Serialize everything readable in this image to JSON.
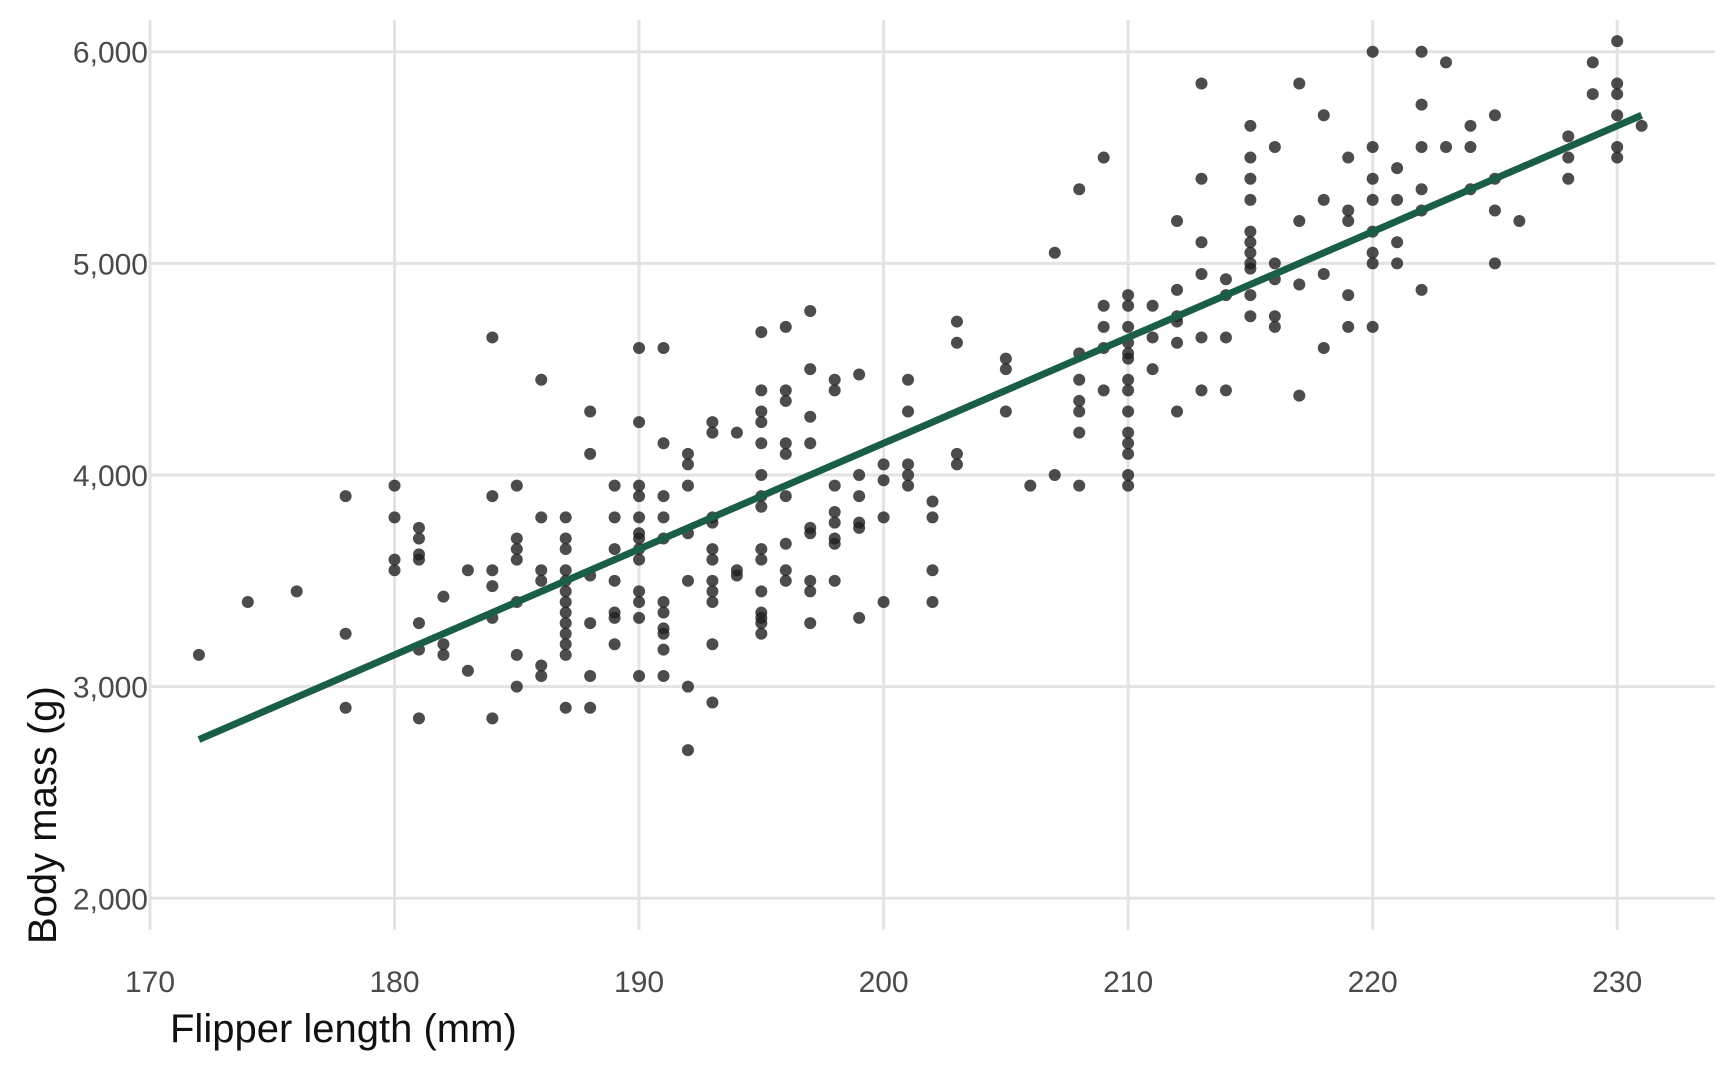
{
  "chart_data": {
    "type": "scatter",
    "title": "",
    "xlabel": "Flipper length (mm)",
    "ylabel": "Body mass (g)",
    "xlim": [
      170,
      234
    ],
    "ylim": [
      1850,
      6150
    ],
    "x_ticks": [
      170,
      180,
      190,
      200,
      210,
      220,
      230
    ],
    "x_tick_labels": [
      "170",
      "180",
      "190",
      "200",
      "210",
      "220",
      "230"
    ],
    "y_ticks": [
      2000,
      3000,
      4000,
      5000,
      6000
    ],
    "y_tick_labels": [
      "2,000",
      "3,000",
      "4,000",
      "5,000",
      "6,000"
    ],
    "grid": true,
    "legend": "none",
    "colors": {
      "points": "#1f1f1f",
      "trend_line": "#1a5e45",
      "grid": "#e3e3e3"
    },
    "points": [
      [
        172,
        3150
      ],
      [
        174,
        3400
      ],
      [
        176,
        3450
      ],
      [
        178,
        3900
      ],
      [
        178,
        3250
      ],
      [
        178,
        2900
      ],
      [
        180,
        3950
      ],
      [
        180,
        3800
      ],
      [
        180,
        3600
      ],
      [
        180,
        3550
      ],
      [
        181,
        3750
      ],
      [
        181,
        3700
      ],
      [
        181,
        3625
      ],
      [
        181,
        3600
      ],
      [
        181,
        3300
      ],
      [
        181,
        3175
      ],
      [
        181,
        2850
      ],
      [
        182,
        3425
      ],
      [
        182,
        3200
      ],
      [
        182,
        3150
      ],
      [
        183,
        3550
      ],
      [
        183,
        3075
      ],
      [
        184,
        4650
      ],
      [
        184,
        3900
      ],
      [
        184,
        3550
      ],
      [
        184,
        3475
      ],
      [
        184,
        3325
      ],
      [
        184,
        2850
      ],
      [
        185,
        3950
      ],
      [
        185,
        3700
      ],
      [
        185,
        3650
      ],
      [
        185,
        3600
      ],
      [
        185,
        3400
      ],
      [
        185,
        3150
      ],
      [
        185,
        3000
      ],
      [
        186,
        4450
      ],
      [
        186,
        3800
      ],
      [
        186,
        3550
      ],
      [
        186,
        3500
      ],
      [
        186,
        3100
      ],
      [
        186,
        3050
      ],
      [
        187,
        3800
      ],
      [
        187,
        3700
      ],
      [
        187,
        3650
      ],
      [
        187,
        3550
      ],
      [
        187,
        3500
      ],
      [
        187,
        3450
      ],
      [
        187,
        3400
      ],
      [
        187,
        3350
      ],
      [
        187,
        3300
      ],
      [
        187,
        3250
      ],
      [
        187,
        3200
      ],
      [
        187,
        3150
      ],
      [
        187,
        2900
      ],
      [
        188,
        4300
      ],
      [
        188,
        4100
      ],
      [
        188,
        3525
      ],
      [
        188,
        3300
      ],
      [
        188,
        3050
      ],
      [
        188,
        2900
      ],
      [
        189,
        3950
      ],
      [
        189,
        3800
      ],
      [
        189,
        3650
      ],
      [
        189,
        3500
      ],
      [
        189,
        3350
      ],
      [
        189,
        3325
      ],
      [
        189,
        3200
      ],
      [
        190,
        4600
      ],
      [
        190,
        4250
      ],
      [
        190,
        3950
      ],
      [
        190,
        3900
      ],
      [
        190,
        3800
      ],
      [
        190,
        3725
      ],
      [
        190,
        3700
      ],
      [
        190,
        3650
      ],
      [
        190,
        3600
      ],
      [
        190,
        3450
      ],
      [
        190,
        3400
      ],
      [
        190,
        3325
      ],
      [
        190,
        3050
      ],
      [
        191,
        4600
      ],
      [
        191,
        4150
      ],
      [
        191,
        3900
      ],
      [
        191,
        3800
      ],
      [
        191,
        3700
      ],
      [
        191,
        3400
      ],
      [
        191,
        3350
      ],
      [
        191,
        3275
      ],
      [
        191,
        3250
      ],
      [
        191,
        3175
      ],
      [
        191,
        3050
      ],
      [
        192,
        4100
      ],
      [
        192,
        4050
      ],
      [
        192,
        3950
      ],
      [
        192,
        3725
      ],
      [
        192,
        3500
      ],
      [
        192,
        3000
      ],
      [
        192,
        2700
      ],
      [
        193,
        4250
      ],
      [
        193,
        4200
      ],
      [
        193,
        3800
      ],
      [
        193,
        3775
      ],
      [
        193,
        3650
      ],
      [
        193,
        3600
      ],
      [
        193,
        3500
      ],
      [
        193,
        3450
      ],
      [
        193,
        3400
      ],
      [
        193,
        3200
      ],
      [
        193,
        2925
      ],
      [
        194,
        4200
      ],
      [
        194,
        3550
      ],
      [
        194,
        3525
      ],
      [
        195,
        4675
      ],
      [
        195,
        4400
      ],
      [
        195,
        4300
      ],
      [
        195,
        4250
      ],
      [
        195,
        4150
      ],
      [
        195,
        4000
      ],
      [
        195,
        3900
      ],
      [
        195,
        3850
      ],
      [
        195,
        3650
      ],
      [
        195,
        3600
      ],
      [
        195,
        3450
      ],
      [
        195,
        3350
      ],
      [
        195,
        3325
      ],
      [
        195,
        3300
      ],
      [
        195,
        3250
      ],
      [
        196,
        4700
      ],
      [
        196,
        4400
      ],
      [
        196,
        4350
      ],
      [
        196,
        4150
      ],
      [
        196,
        4100
      ],
      [
        196,
        3900
      ],
      [
        196,
        3675
      ],
      [
        196,
        3550
      ],
      [
        196,
        3500
      ],
      [
        197,
        4775
      ],
      [
        197,
        4500
      ],
      [
        197,
        4275
      ],
      [
        197,
        4150
      ],
      [
        197,
        3750
      ],
      [
        197,
        3725
      ],
      [
        197,
        3500
      ],
      [
        197,
        3450
      ],
      [
        197,
        3300
      ],
      [
        198,
        4450
      ],
      [
        198,
        4400
      ],
      [
        198,
        3950
      ],
      [
        198,
        3825
      ],
      [
        198,
        3775
      ],
      [
        198,
        3700
      ],
      [
        198,
        3675
      ],
      [
        198,
        3500
      ],
      [
        199,
        4475
      ],
      [
        199,
        4000
      ],
      [
        199,
        3900
      ],
      [
        199,
        3775
      ],
      [
        199,
        3750
      ],
      [
        199,
        3325
      ],
      [
        200,
        4050
      ],
      [
        200,
        3975
      ],
      [
        200,
        3800
      ],
      [
        200,
        3400
      ],
      [
        201,
        4450
      ],
      [
        201,
        4300
      ],
      [
        201,
        4050
      ],
      [
        201,
        4000
      ],
      [
        201,
        3950
      ],
      [
        202,
        3875
      ],
      [
        202,
        3800
      ],
      [
        202,
        3550
      ],
      [
        202,
        3400
      ],
      [
        203,
        4725
      ],
      [
        203,
        4625
      ],
      [
        203,
        4100
      ],
      [
        203,
        4050
      ],
      [
        205,
        4550
      ],
      [
        205,
        4500
      ],
      [
        205,
        4300
      ],
      [
        206,
        3950
      ],
      [
        207,
        5050
      ],
      [
        207,
        4000
      ],
      [
        208,
        5350
      ],
      [
        208,
        4575
      ],
      [
        208,
        4450
      ],
      [
        208,
        4350
      ],
      [
        208,
        4300
      ],
      [
        208,
        4200
      ],
      [
        208,
        3950
      ],
      [
        209,
        5500
      ],
      [
        209,
        4800
      ],
      [
        209,
        4700
      ],
      [
        209,
        4600
      ],
      [
        209,
        4400
      ],
      [
        210,
        4850
      ],
      [
        210,
        4800
      ],
      [
        210,
        4700
      ],
      [
        210,
        4625
      ],
      [
        210,
        4575
      ],
      [
        210,
        4550
      ],
      [
        210,
        4450
      ],
      [
        210,
        4400
      ],
      [
        210,
        4300
      ],
      [
        210,
        4200
      ],
      [
        210,
        4150
      ],
      [
        210,
        4100
      ],
      [
        210,
        4000
      ],
      [
        210,
        3950
      ],
      [
        211,
        4800
      ],
      [
        211,
        4650
      ],
      [
        211,
        4500
      ],
      [
        212,
        5200
      ],
      [
        212,
        4875
      ],
      [
        212,
        4750
      ],
      [
        212,
        4725
      ],
      [
        212,
        4625
      ],
      [
        212,
        4300
      ],
      [
        213,
        5850
      ],
      [
        213,
        5400
      ],
      [
        213,
        5100
      ],
      [
        213,
        4950
      ],
      [
        213,
        4650
      ],
      [
        213,
        4400
      ],
      [
        214,
        4925
      ],
      [
        214,
        4850
      ],
      [
        214,
        4650
      ],
      [
        214,
        4400
      ],
      [
        215,
        5650
      ],
      [
        215,
        5500
      ],
      [
        215,
        5400
      ],
      [
        215,
        5300
      ],
      [
        215,
        5150
      ],
      [
        215,
        5100
      ],
      [
        215,
        5050
      ],
      [
        215,
        5000
      ],
      [
        215,
        4975
      ],
      [
        215,
        4850
      ],
      [
        215,
        4750
      ],
      [
        216,
        5550
      ],
      [
        216,
        5000
      ],
      [
        216,
        4925
      ],
      [
        216,
        4750
      ],
      [
        216,
        4700
      ],
      [
        217,
        5850
      ],
      [
        217,
        5200
      ],
      [
        217,
        4900
      ],
      [
        217,
        4375
      ],
      [
        218,
        5700
      ],
      [
        218,
        5300
      ],
      [
        218,
        4950
      ],
      [
        218,
        4600
      ],
      [
        219,
        5500
      ],
      [
        219,
        5250
      ],
      [
        219,
        5200
      ],
      [
        219,
        4850
      ],
      [
        219,
        4700
      ],
      [
        220,
        6000
      ],
      [
        220,
        5550
      ],
      [
        220,
        5400
      ],
      [
        220,
        5300
      ],
      [
        220,
        5150
      ],
      [
        220,
        5050
      ],
      [
        220,
        5000
      ],
      [
        220,
        4700
      ],
      [
        221,
        5450
      ],
      [
        221,
        5300
      ],
      [
        221,
        5100
      ],
      [
        221,
        5000
      ],
      [
        222,
        6000
      ],
      [
        222,
        5750
      ],
      [
        222,
        5550
      ],
      [
        222,
        5350
      ],
      [
        222,
        5250
      ],
      [
        222,
        4875
      ],
      [
        223,
        5950
      ],
      [
        223,
        5550
      ],
      [
        224,
        5650
      ],
      [
        224,
        5550
      ],
      [
        224,
        5350
      ],
      [
        225,
        5700
      ],
      [
        225,
        5400
      ],
      [
        225,
        5250
      ],
      [
        225,
        5000
      ],
      [
        226,
        5200
      ],
      [
        228,
        5600
      ],
      [
        228,
        5500
      ],
      [
        228,
        5400
      ],
      [
        229,
        5950
      ],
      [
        229,
        5800
      ],
      [
        230,
        6050
      ],
      [
        230,
        5850
      ],
      [
        230,
        5800
      ],
      [
        230,
        5700
      ],
      [
        230,
        5550
      ],
      [
        230,
        5500
      ],
      [
        231,
        5650
      ]
    ],
    "trend_line": {
      "type": "linear",
      "x": [
        172,
        231
      ],
      "y": [
        2750,
        5700
      ]
    }
  }
}
